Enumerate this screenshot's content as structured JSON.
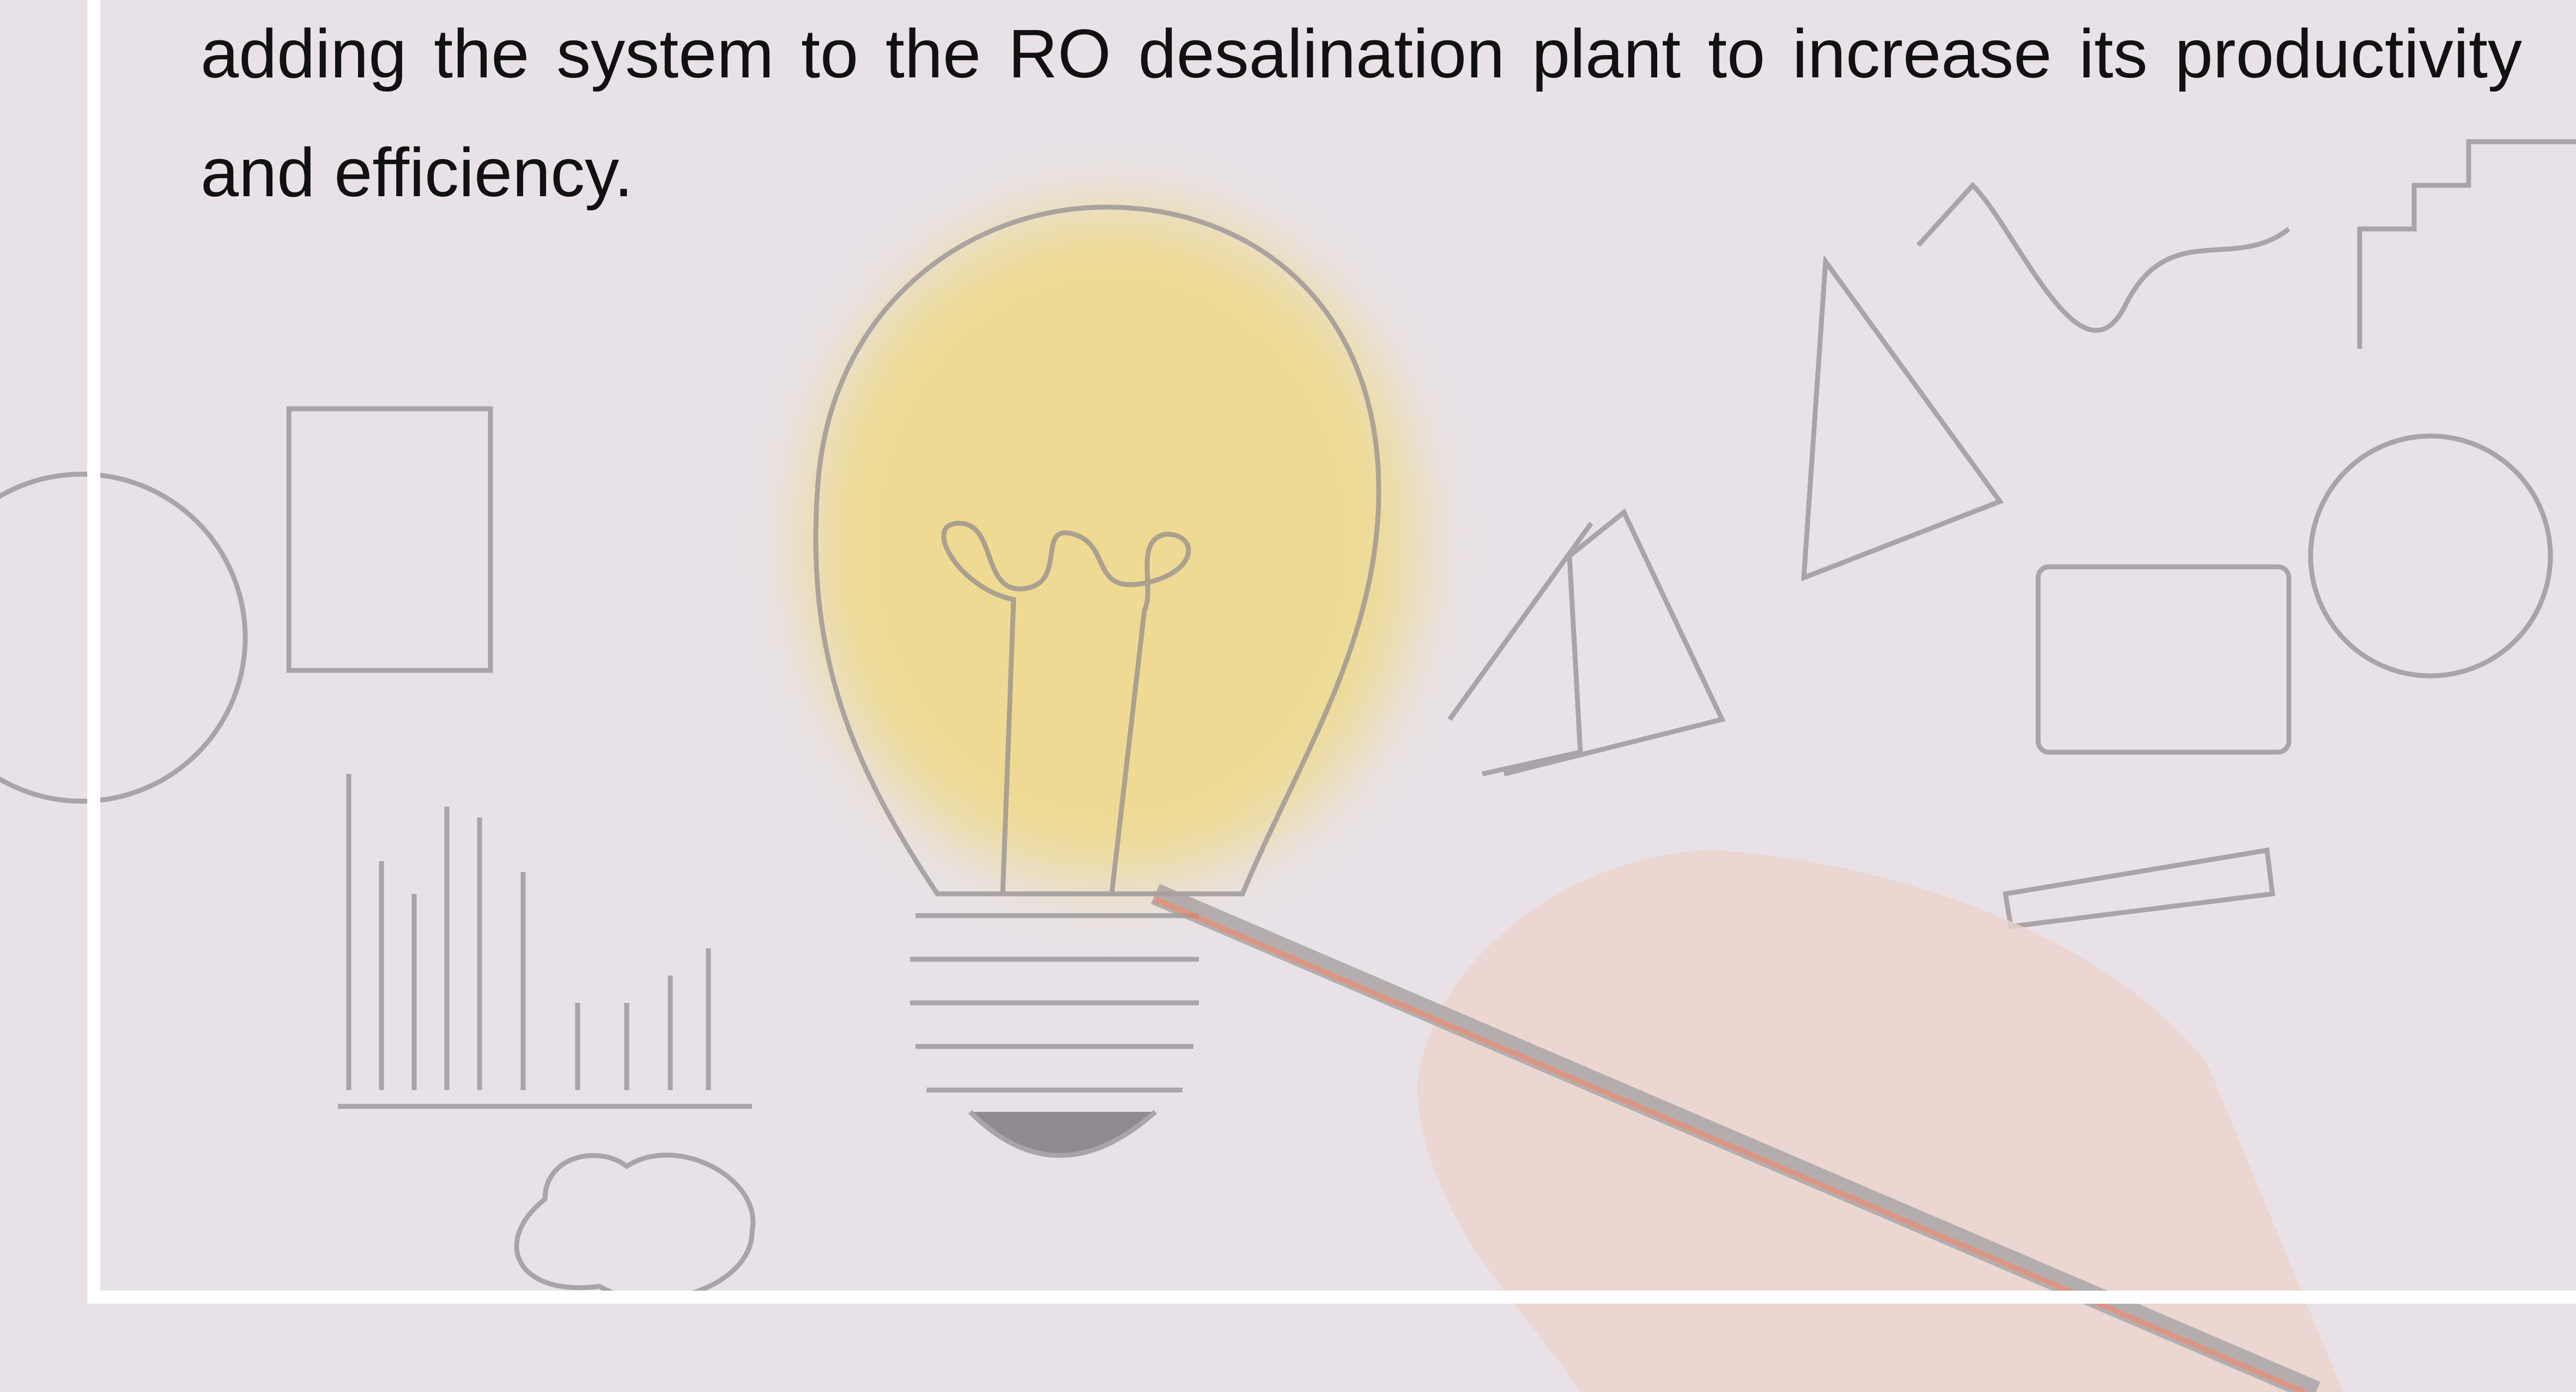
{
  "body": {
    "text": "adding the system to the RO desalination plant to increase its productivity and efficiency."
  }
}
